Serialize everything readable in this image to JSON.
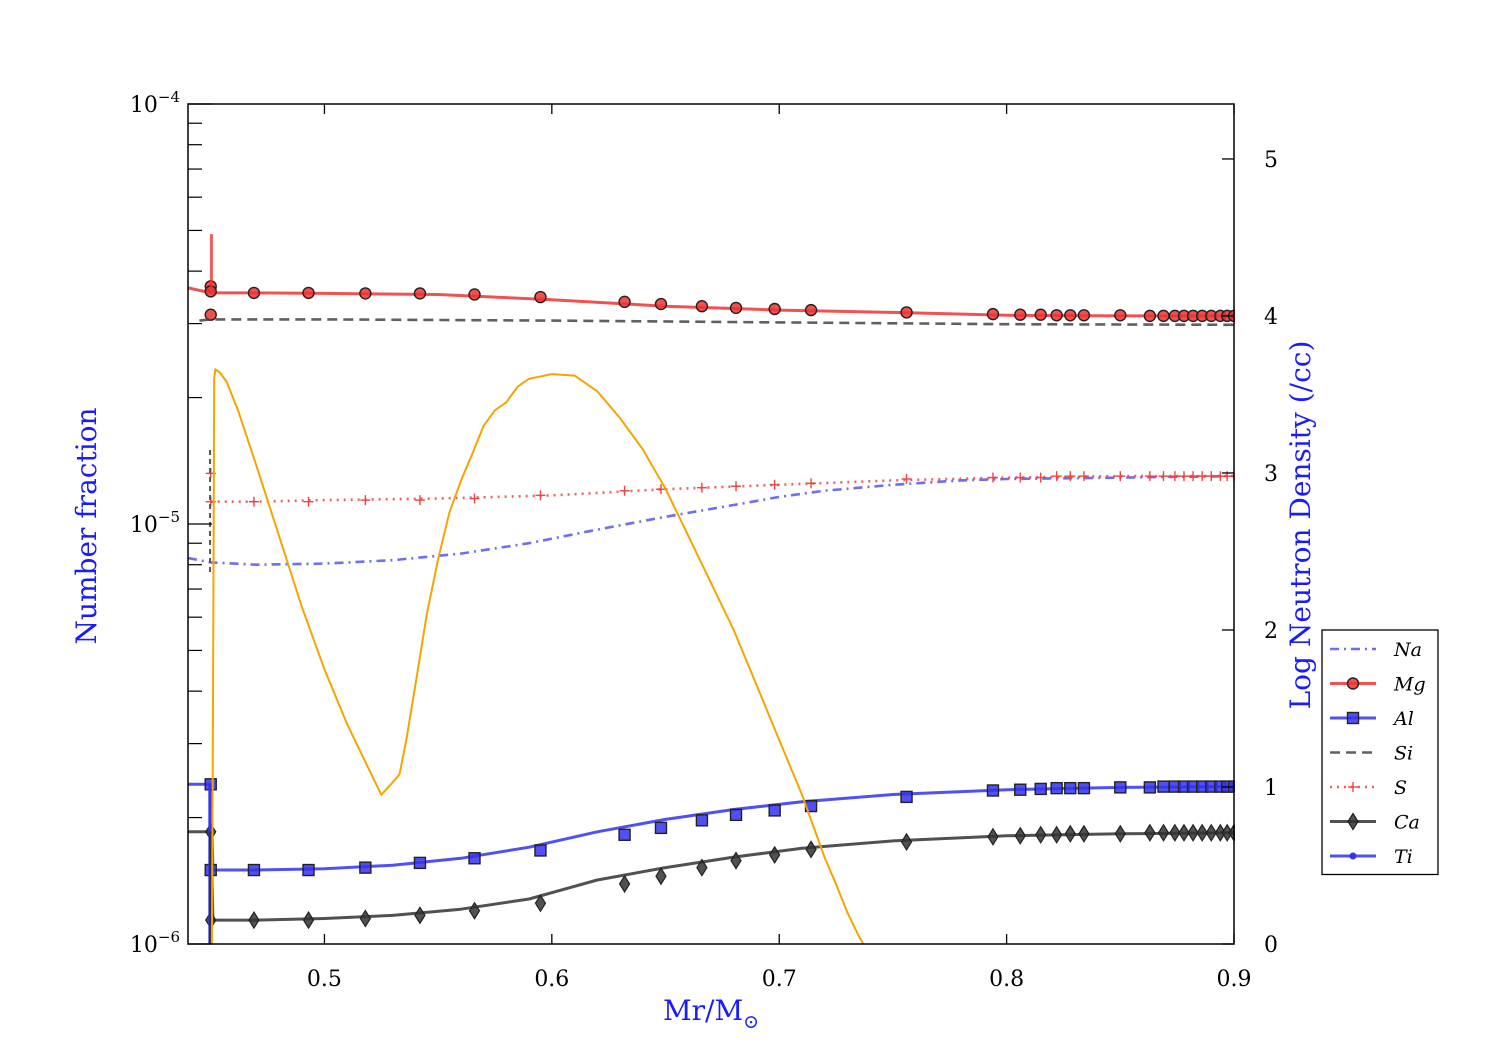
{
  "chart_data": {
    "type": "line",
    "xlabel": "Mr/M",
    "xlabel_sub": "⊙",
    "ylabel_left": "Number fraction",
    "ylabel_right": "Log Neutron Density (/cc)",
    "xlim": [
      0.44,
      0.9
    ],
    "ylim_left": [
      1e-06,
      0.0001
    ],
    "y_left_scale": "log",
    "ylim_right": [
      0,
      5.35
    ],
    "x_ticks": [
      0.5,
      0.6,
      0.7,
      0.8,
      0.9
    ],
    "x_tick_labels": [
      "0.5",
      "0.6",
      "0.7",
      "0.8",
      "0.9"
    ],
    "y_left_ticks": [
      {
        "value": 1e-06,
        "base": "10",
        "exp": "−6"
      },
      {
        "value": 1e-05,
        "base": "10",
        "exp": "−5"
      },
      {
        "value": 0.0001,
        "base": "10",
        "exp": "−4"
      }
    ],
    "y_right_ticks": [
      0,
      1,
      2,
      3,
      4,
      5
    ],
    "y_right_tick_labels": [
      "0",
      "1",
      "2",
      "3",
      "4",
      "5"
    ],
    "grid": false,
    "legend_position": "right, outside plot area",
    "series": [
      {
        "name": "Na",
        "axis": "left",
        "color": "#5555ee",
        "style": "dashdot",
        "marker": "none",
        "x": [
          0.44,
          0.45,
          0.47,
          0.5,
          0.53,
          0.56,
          0.59,
          0.62,
          0.65,
          0.68,
          0.7,
          0.72,
          0.75,
          0.78,
          0.8,
          0.85,
          0.9
        ],
        "y": [
          8.3e-06,
          8.1e-06,
          8e-06,
          8.05e-06,
          8.2e-06,
          8.5e-06,
          9e-06,
          9.7e-06,
          1.04e-05,
          1.11e-05,
          1.16e-05,
          1.2e-05,
          1.24e-05,
          1.27e-05,
          1.28e-05,
          1.29e-05,
          1.3e-05
        ]
      },
      {
        "name": "Mg",
        "axis": "left",
        "color": "#ee3333",
        "style": "solid",
        "marker": "circle",
        "x": [
          0.44,
          0.45,
          0.47,
          0.5,
          0.55,
          0.6,
          0.65,
          0.7,
          0.75,
          0.8,
          0.85,
          0.9
        ],
        "y": [
          3.65e-05,
          3.55e-05,
          3.55e-05,
          3.54e-05,
          3.52e-05,
          3.42e-05,
          3.3e-05,
          3.23e-05,
          3.19e-05,
          3.14e-05,
          3.13e-05,
          3.13e-05
        ],
        "marker_x": [
          0.45,
          0.45,
          0.45,
          0.469,
          0.493,
          0.518,
          0.542,
          0.566,
          0.595,
          0.632,
          0.648,
          0.666,
          0.681,
          0.698,
          0.714,
          0.756,
          0.794,
          0.806,
          0.815,
          0.822,
          0.828,
          0.834,
          0.85,
          0.863,
          0.869,
          0.874,
          0.878,
          0.882,
          0.886,
          0.89,
          0.894,
          0.897,
          0.9
        ],
        "marker_y": [
          3.68e-05,
          3.58e-05,
          3.15e-05,
          3.55e-05,
          3.55e-05,
          3.54e-05,
          3.54e-05,
          3.52e-05,
          3.47e-05,
          3.38e-05,
          3.34e-05,
          3.3e-05,
          3.27e-05,
          3.25e-05,
          3.23e-05,
          3.19e-05,
          3.16e-05,
          3.15e-05,
          3.15e-05,
          3.14e-05,
          3.14e-05,
          3.14e-05,
          3.14e-05,
          3.13e-05,
          3.13e-05,
          3.13e-05,
          3.13e-05,
          3.13e-05,
          3.13e-05,
          3.13e-05,
          3.13e-05,
          3.13e-05,
          3.13e-05
        ]
      },
      {
        "name": "Al",
        "axis": "left",
        "color": "#3333ee",
        "style": "solid",
        "marker": "square",
        "x": [
          0.44,
          0.45,
          0.451,
          0.47,
          0.5,
          0.53,
          0.56,
          0.59,
          0.62,
          0.65,
          0.68,
          0.71,
          0.75,
          0.8,
          0.85,
          0.9
        ],
        "y": [
          2.4e-06,
          2.4e-06,
          1.5e-06,
          1.5e-06,
          1.51e-06,
          1.54e-06,
          1.6e-06,
          1.7e-06,
          1.85e-06,
          1.98e-06,
          2.09e-06,
          2.18e-06,
          2.27e-06,
          2.33e-06,
          2.36e-06,
          2.37e-06
        ],
        "marker_x": [
          0.45,
          0.45,
          0.469,
          0.493,
          0.518,
          0.542,
          0.566,
          0.595,
          0.632,
          0.648,
          0.666,
          0.681,
          0.698,
          0.714,
          0.756,
          0.794,
          0.806,
          0.815,
          0.822,
          0.828,
          0.834,
          0.85,
          0.863,
          0.869,
          0.874,
          0.878,
          0.882,
          0.886,
          0.89,
          0.894,
          0.897,
          0.9
        ],
        "marker_y": [
          2.4e-06,
          1.5e-06,
          1.5e-06,
          1.5e-06,
          1.52e-06,
          1.56e-06,
          1.6e-06,
          1.67e-06,
          1.82e-06,
          1.89e-06,
          1.97e-06,
          2.03e-06,
          2.08e-06,
          2.13e-06,
          2.24e-06,
          2.32e-06,
          2.33e-06,
          2.34e-06,
          2.35e-06,
          2.35e-06,
          2.35e-06,
          2.36e-06,
          2.36e-06,
          2.37e-06,
          2.37e-06,
          2.37e-06,
          2.37e-06,
          2.37e-06,
          2.37e-06,
          2.37e-06,
          2.37e-06,
          2.37e-06
        ]
      },
      {
        "name": "Si",
        "axis": "left",
        "color": "#444444",
        "style": "dashed",
        "marker": "none",
        "x": [
          0.445,
          0.45,
          0.5,
          0.6,
          0.7,
          0.8,
          0.9
        ],
        "y": [
          3.05e-05,
          3.07e-05,
          3.07e-05,
          3.05e-05,
          3.02e-05,
          2.99e-05,
          2.98e-05
        ]
      },
      {
        "name": "S",
        "axis": "left",
        "color": "#ee4444",
        "style": "dotted",
        "marker": "plus",
        "x": [
          0.45,
          0.47,
          0.5,
          0.55,
          0.6,
          0.65,
          0.7,
          0.75,
          0.8,
          0.85,
          0.9
        ],
        "y": [
          1.13e-05,
          1.13e-05,
          1.14e-05,
          1.15e-05,
          1.17e-05,
          1.21e-05,
          1.24e-05,
          1.27e-05,
          1.29e-05,
          1.3e-05,
          1.3e-05
        ],
        "marker_x": [
          0.45,
          0.45,
          0.469,
          0.493,
          0.518,
          0.542,
          0.566,
          0.595,
          0.632,
          0.648,
          0.666,
          0.681,
          0.698,
          0.714,
          0.756,
          0.794,
          0.806,
          0.815,
          0.822,
          0.828,
          0.834,
          0.85,
          0.863,
          0.869,
          0.874,
          0.878,
          0.882,
          0.886,
          0.89,
          0.894,
          0.897,
          0.9
        ],
        "marker_y": [
          1.32e-05,
          1.13e-05,
          1.13e-05,
          1.13e-05,
          1.14e-05,
          1.14e-05,
          1.15e-05,
          1.17e-05,
          1.2e-05,
          1.21e-05,
          1.22e-05,
          1.23e-05,
          1.24e-05,
          1.25e-05,
          1.28e-05,
          1.29e-05,
          1.29e-05,
          1.29e-05,
          1.3e-05,
          1.3e-05,
          1.3e-05,
          1.3e-05,
          1.3e-05,
          1.3e-05,
          1.3e-05,
          1.3e-05,
          1.3e-05,
          1.3e-05,
          1.3e-05,
          1.3e-05,
          1.3e-05,
          1.3e-05
        ]
      },
      {
        "name": "Ca",
        "axis": "left",
        "color": "#333333",
        "style": "solid",
        "marker": "diamond",
        "x": [
          0.44,
          0.45,
          0.451,
          0.47,
          0.5,
          0.53,
          0.56,
          0.59,
          0.62,
          0.65,
          0.68,
          0.71,
          0.75,
          0.8,
          0.85,
          0.9
        ],
        "y": [
          1.85e-06,
          1.85e-06,
          1.14e-06,
          1.14e-06,
          1.15e-06,
          1.17e-06,
          1.21e-06,
          1.28e-06,
          1.42e-06,
          1.52e-06,
          1.61e-06,
          1.69e-06,
          1.76e-06,
          1.81e-06,
          1.83e-06,
          1.84e-06
        ],
        "marker_x": [
          0.45,
          0.45,
          0.469,
          0.493,
          0.518,
          0.542,
          0.566,
          0.595,
          0.632,
          0.648,
          0.666,
          0.681,
          0.698,
          0.714,
          0.756,
          0.794,
          0.806,
          0.815,
          0.822,
          0.828,
          0.834,
          0.85,
          0.863,
          0.869,
          0.874,
          0.878,
          0.882,
          0.886,
          0.89,
          0.894,
          0.897,
          0.9
        ],
        "marker_y": [
          1.85e-06,
          1.14e-06,
          1.14e-06,
          1.14e-06,
          1.15e-06,
          1.17e-06,
          1.2e-06,
          1.25e-06,
          1.39e-06,
          1.45e-06,
          1.52e-06,
          1.58e-06,
          1.63e-06,
          1.68e-06,
          1.75e-06,
          1.8e-06,
          1.81e-06,
          1.82e-06,
          1.82e-06,
          1.83e-06,
          1.83e-06,
          1.83e-06,
          1.84e-06,
          1.84e-06,
          1.84e-06,
          1.84e-06,
          1.84e-06,
          1.84e-06,
          1.84e-06,
          1.84e-06,
          1.84e-06,
          1.84e-06
        ]
      },
      {
        "name": "Ti",
        "axis": "left",
        "color": "#3333ee",
        "style": "solid",
        "marker": "dot",
        "x": [],
        "y": []
      }
    ],
    "neutron_density": {
      "axis": "right",
      "color": "#f5a500",
      "style": "solid",
      "x": [
        0.4505,
        0.451,
        0.4515,
        0.452,
        0.454,
        0.457,
        0.462,
        0.47,
        0.48,
        0.49,
        0.5,
        0.51,
        0.52,
        0.525,
        0.53,
        0.533,
        0.536,
        0.54,
        0.545,
        0.55,
        0.555,
        0.56,
        0.565,
        0.57,
        0.575,
        0.58,
        0.585,
        0.59,
        0.6,
        0.61,
        0.62,
        0.63,
        0.64,
        0.65,
        0.66,
        0.67,
        0.68,
        0.69,
        0.7,
        0.71,
        0.72,
        0.725,
        0.73,
        0.735,
        0.737
      ],
      "y": [
        0,
        1.5,
        3.6,
        3.66,
        3.64,
        3.58,
        3.4,
        3.05,
        2.6,
        2.15,
        1.75,
        1.4,
        1.1,
        0.95,
        1.03,
        1.08,
        1.3,
        1.65,
        2.1,
        2.45,
        2.75,
        2.95,
        3.12,
        3.3,
        3.4,
        3.45,
        3.55,
        3.6,
        3.63,
        3.62,
        3.52,
        3.35,
        3.15,
        2.9,
        2.6,
        2.3,
        2.0,
        1.65,
        1.3,
        0.95,
        0.55,
        0.38,
        0.2,
        0.05,
        0
      ]
    }
  }
}
